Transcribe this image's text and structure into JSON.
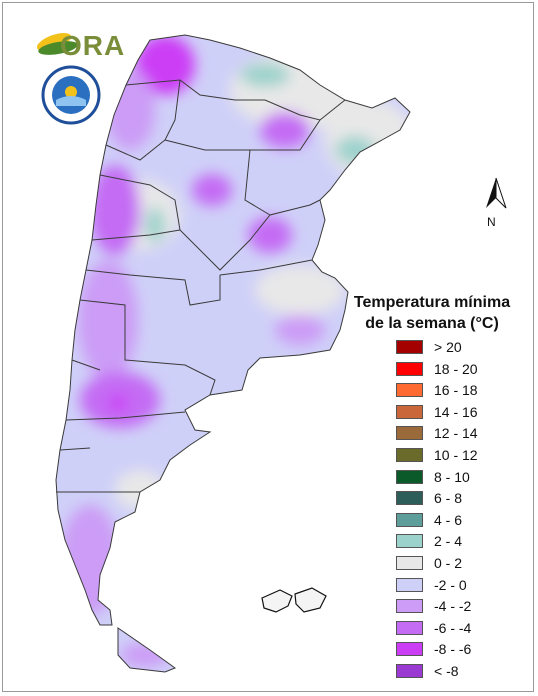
{
  "title": {
    "line1": "Temperatura mínima",
    "line2": "de la semana (°C)"
  },
  "logos": {
    "ora": "ORA",
    "smn_seal_text": "SERVICIO METEOROLÓGICO NACIONAL · ARGENTINA"
  },
  "north_arrow": {
    "label": "N"
  },
  "legend": [
    {
      "label": "> 20",
      "color": "#a50000"
    },
    {
      "label": "18 - 20",
      "color": "#ff0000"
    },
    {
      "label": "16 - 18",
      "color": "#ff6a32"
    },
    {
      "label": "14 - 16",
      "color": "#c9663a"
    },
    {
      "label": "12 - 14",
      "color": "#9a6a3a"
    },
    {
      "label": "10 - 12",
      "color": "#6a6a2a"
    },
    {
      "label": "8 - 10",
      "color": "#0a5a2a"
    },
    {
      "label": "6 - 8",
      "color": "#2e5e5a"
    },
    {
      "label": "4 - 6",
      "color": "#5e9e9a"
    },
    {
      "label": "2 - 4",
      "color": "#9cd2cc"
    },
    {
      "label": "0 - 2",
      "color": "#e8e8e8"
    },
    {
      "label": "-2 - 0",
      "color": "#cfd0f8"
    },
    {
      "label": "-4 - -2",
      "color": "#cc9cf6"
    },
    {
      "label": "-6 - -4",
      "color": "#c46cf4"
    },
    {
      "label": "-8 - -6",
      "color": "#cc3ef6"
    },
    {
      "label": "< -8",
      "color": "#9a3ad2"
    }
  ]
}
